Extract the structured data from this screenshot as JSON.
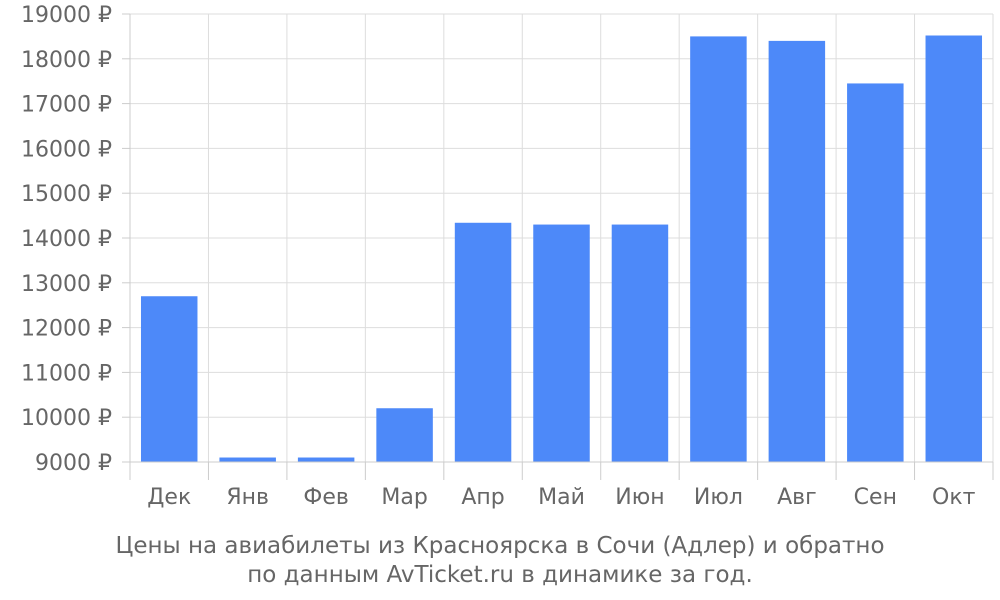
{
  "chart_data": {
    "type": "bar",
    "categories": [
      "Дек",
      "Янв",
      "Фев",
      "Мар",
      "Апр",
      "Май",
      "Июн",
      "Июл",
      "Авг",
      "Сен",
      "Окт"
    ],
    "values": [
      12700,
      9100,
      9100,
      10200,
      14340,
      14300,
      14300,
      18500,
      18400,
      17450,
      18520
    ],
    "ylim": [
      9000,
      19000
    ],
    "yticks": [
      9000,
      10000,
      11000,
      12000,
      13000,
      14000,
      15000,
      16000,
      17000,
      18000,
      19000
    ],
    "ytick_suffix": " ₽",
    "bar_color": "#4d89f9",
    "grid_color": "#dddddd",
    "axis_color": "#cccccc",
    "text_color": "#666666",
    "grid": true,
    "legend": false,
    "caption_line1": "Цены на авиабилеты из Красноярска в Сочи (Адлер) и обратно",
    "caption_line2": "по данным AvTicket.ru в динамике за год."
  }
}
